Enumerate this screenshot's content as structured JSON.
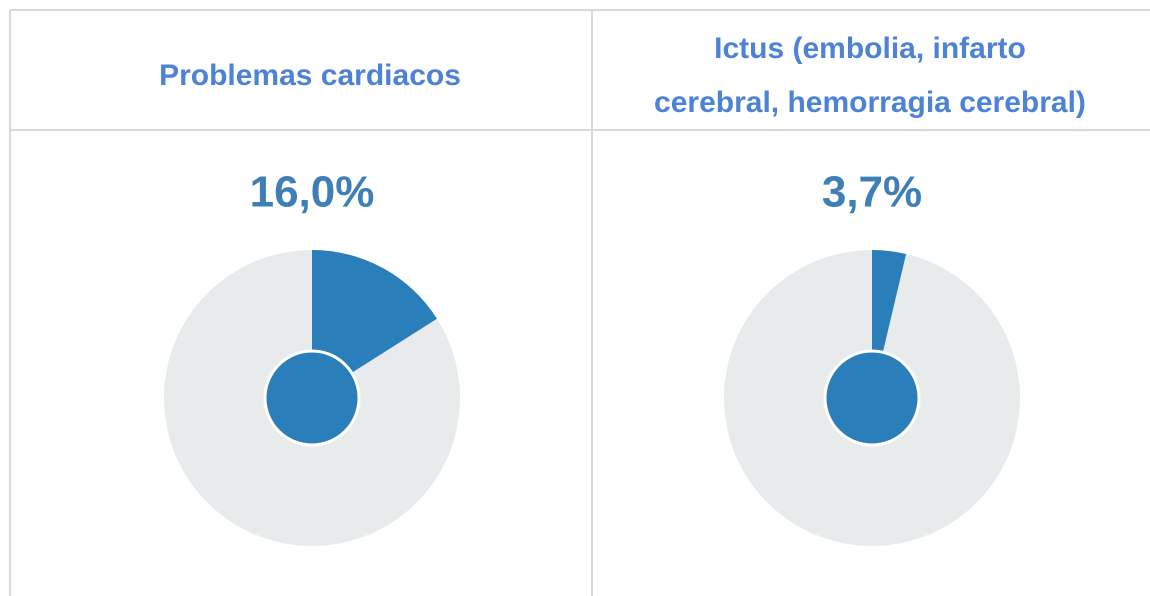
{
  "chart_data": [
    {
      "type": "pie",
      "title": [
        "Problemas cardiacos"
      ],
      "values": [
        16.0
      ],
      "value_labels": [
        "16,0%"
      ],
      "color": "#2a7fba",
      "background_color": "#e8ebec"
    },
    {
      "type": "pie",
      "title": [
        "Ictus (embolia, infarto",
        "cerebral, hemorragia cerebral)"
      ],
      "values": [
        3.7
      ],
      "value_labels": [
        "3,7%"
      ],
      "color": "#2a7fba",
      "background_color": "#e8ebec"
    }
  ]
}
